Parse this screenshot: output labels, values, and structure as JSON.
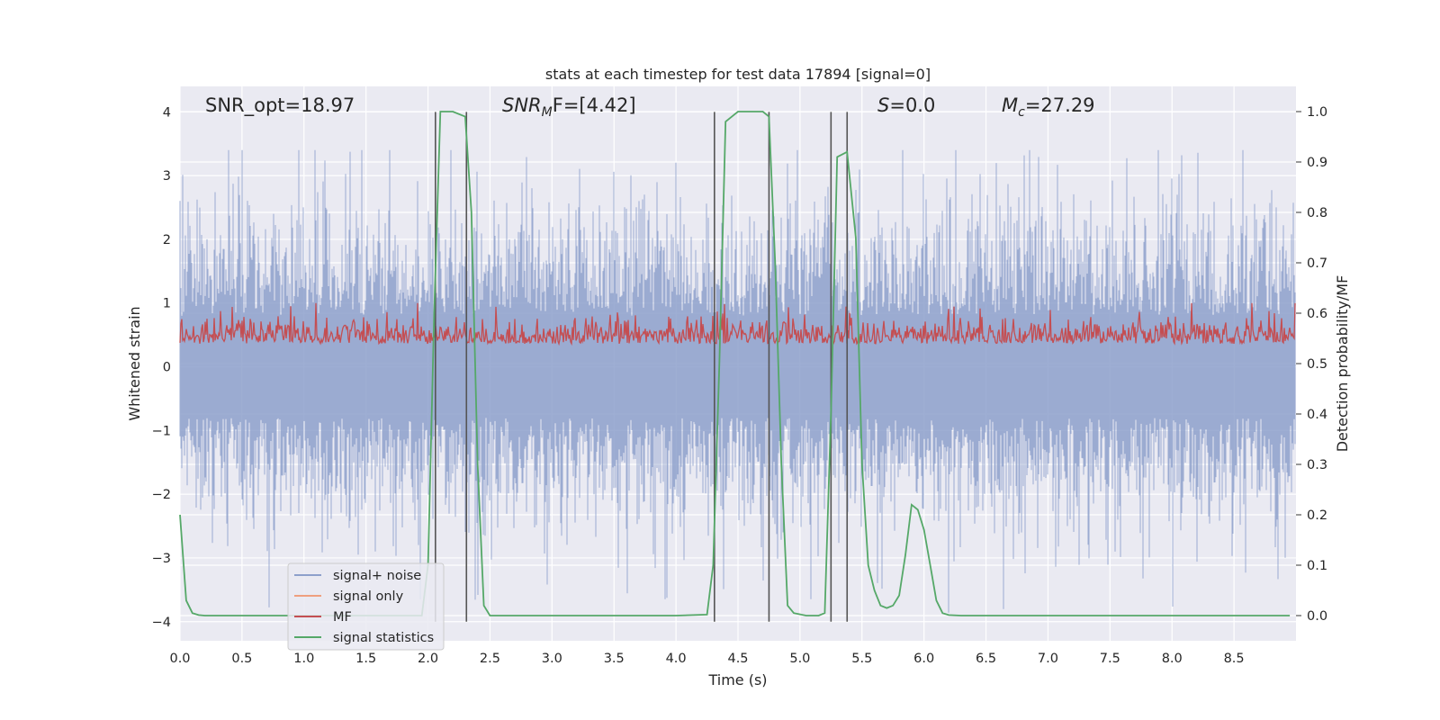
{
  "chart_data": {
    "type": "line",
    "title": "stats at each timestep for test data 17894 [signal=0]",
    "xlabel": "Time (s)",
    "ylabel": "Whitened strain",
    "ylabel_right": "Detection probability/MF",
    "xlim": [
      0.0,
      9.0
    ],
    "ylim": [
      -4.3,
      4.4
    ],
    "ylim_right": [
      -0.05,
      1.05
    ],
    "x_ticks": [
      "0.0",
      "0.5",
      "1.0",
      "1.5",
      "2.0",
      "2.5",
      "3.0",
      "3.5",
      "4.0",
      "4.5",
      "5.0",
      "5.5",
      "6.0",
      "6.5",
      "7.0",
      "7.5",
      "8.0",
      "8.5"
    ],
    "y_ticks": [
      "4",
      "3",
      "2",
      "1",
      "0",
      "−1",
      "−2",
      "−3",
      "−4"
    ],
    "y_ticks_right": [
      "1.0",
      "0.9",
      "0.8",
      "0.7",
      "0.6",
      "0.5",
      "0.4",
      "0.3",
      "0.2",
      "0.1",
      "0.0"
    ],
    "annotations": {
      "snr_opt": "SNR_opt=18.97",
      "snr_mf_main": "SNR",
      "snr_mf_sub": "M",
      "snr_mf_rest": "F=[4.42]",
      "s_main": "S",
      "s_rest": "=0.0",
      "mc_main": "M",
      "mc_sub": "c",
      "mc_rest": "=27.29"
    },
    "legend": [
      "signal+ noise",
      "signal only",
      "MF",
      "signal statistics"
    ],
    "colors": {
      "signal_noise": "#8da0cb",
      "signal_only": "#ef9f7f",
      "mf": "#c44e52",
      "signal_statistics": "#55a868",
      "vlines": "#555555",
      "plot_bg": "#eaeaf2",
      "grid": "#ffffff"
    },
    "series": [
      {
        "name": "signal+ noise",
        "envelope_mean": 0.0,
        "envelope_std": 1.0,
        "peak_max": 3.4,
        "peak_min": -3.9
      },
      {
        "name": "signal only",
        "values": []
      },
      {
        "name": "MF",
        "envelope_low": 0.05,
        "envelope_high": 0.75
      },
      {
        "name": "signal statistics",
        "x": [
          0.0,
          0.05,
          0.1,
          0.15,
          0.2,
          0.3,
          0.5,
          1.0,
          1.5,
          1.95,
          2.0,
          2.05,
          2.1,
          2.15,
          2.2,
          2.3,
          2.35,
          2.4,
          2.45,
          2.5,
          2.6,
          3.0,
          3.5,
          4.0,
          4.25,
          4.3,
          4.35,
          4.4,
          4.5,
          4.6,
          4.7,
          4.75,
          4.8,
          4.85,
          4.9,
          4.95,
          5.05,
          5.15,
          5.2,
          5.25,
          5.3,
          5.38,
          5.45,
          5.5,
          5.55,
          5.6,
          5.65,
          5.7,
          5.75,
          5.8,
          5.85,
          5.9,
          5.95,
          6.0,
          6.05,
          6.1,
          6.15,
          6.2,
          6.3,
          6.5,
          7.0,
          7.5,
          8.0,
          8.5,
          8.95
        ],
        "y": [
          0.2,
          0.03,
          0.005,
          0.001,
          0.0,
          0.0,
          0.0,
          0.0,
          0.0,
          0.0,
          0.1,
          0.6,
          1.0,
          1.0,
          1.0,
          0.99,
          0.8,
          0.3,
          0.02,
          0.0,
          0.0,
          0.0,
          0.0,
          0.0,
          0.002,
          0.1,
          0.5,
          0.98,
          1.0,
          1.0,
          1.0,
          0.99,
          0.7,
          0.3,
          0.02,
          0.005,
          0.0,
          0.0,
          0.005,
          0.4,
          0.91,
          0.92,
          0.75,
          0.3,
          0.1,
          0.05,
          0.02,
          0.015,
          0.02,
          0.04,
          0.12,
          0.22,
          0.21,
          0.17,
          0.1,
          0.03,
          0.005,
          0.001,
          0.0,
          0.0,
          0.0,
          0.0,
          0.0,
          0.0,
          0.0
        ]
      }
    ],
    "vertical_lines_x": [
      2.06,
      2.31,
      4.31,
      4.75,
      5.25,
      5.38
    ],
    "vertical_lines_y_range": [
      -4.0,
      4.0
    ]
  }
}
